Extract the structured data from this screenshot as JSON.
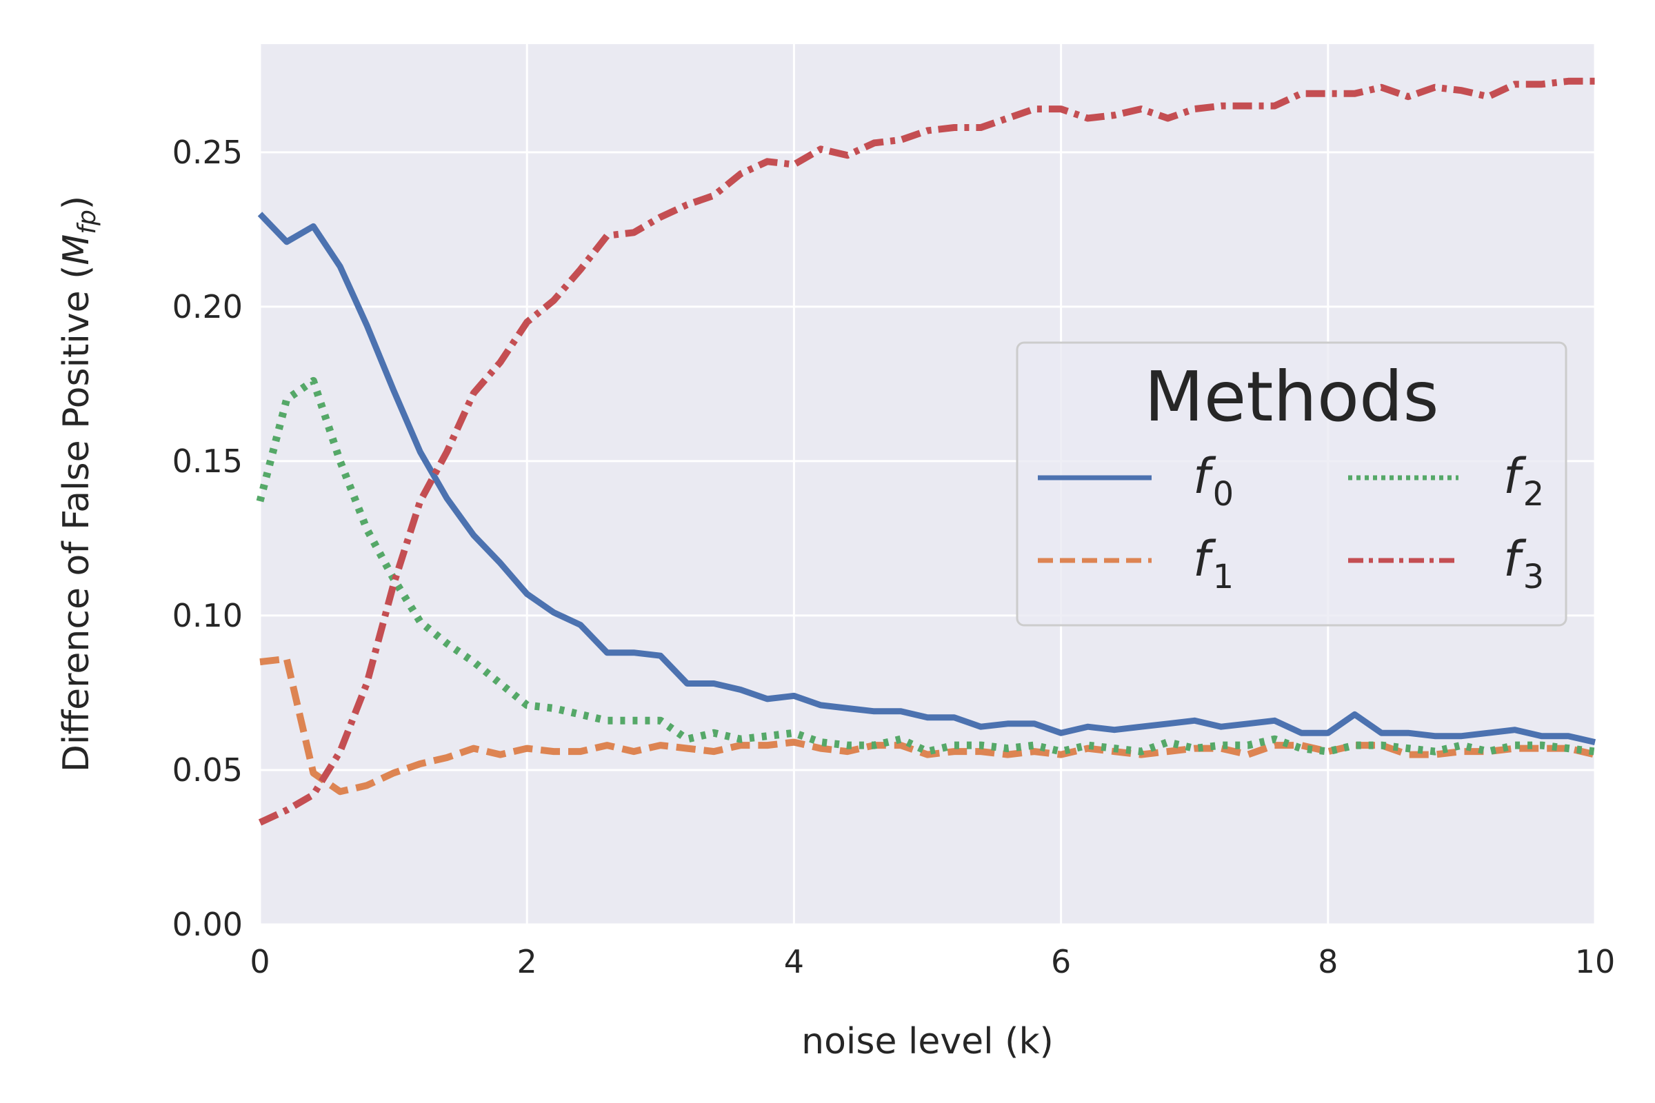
{
  "chart_data": {
    "type": "line",
    "title": "",
    "xlabel": "noise level (k)",
    "ylabel_text": "Difference of False Positive (",
    "ylabel_math": "M",
    "ylabel_sub": "fp",
    "ylabel_close": ")",
    "xlim": [
      0,
      10
    ],
    "ylim": [
      0,
      0.285
    ],
    "xticks": [
      0,
      2,
      4,
      6,
      8,
      10
    ],
    "xtick_labels": [
      "0",
      "2",
      "4",
      "6",
      "8",
      "10"
    ],
    "yticks": [
      0.0,
      0.05,
      0.1,
      0.15,
      0.2,
      0.25
    ],
    "ytick_labels": [
      "0.00",
      "0.05",
      "0.10",
      "0.15",
      "0.20",
      "0.25"
    ],
    "grid": true,
    "legend": {
      "title": "Methods",
      "placement": "center-right",
      "columns": 2
    },
    "x": [
      0,
      0.2,
      0.4,
      0.6,
      0.8,
      1.0,
      1.2,
      1.4,
      1.6,
      1.8,
      2.0,
      2.2,
      2.4,
      2.6,
      2.8,
      3.0,
      3.2,
      3.4,
      3.6,
      3.8,
      4.0,
      4.2,
      4.4,
      4.6,
      4.8,
      5.0,
      5.2,
      5.4,
      5.6,
      5.8,
      6.0,
      6.2,
      6.4,
      6.6,
      6.8,
      7.0,
      7.2,
      7.4,
      7.6,
      7.8,
      8.0,
      8.2,
      8.4,
      8.6,
      8.8,
      9.0,
      9.2,
      9.4,
      9.6,
      9.8,
      10.0
    ],
    "series": [
      {
        "name": "f",
        "sub": "0",
        "color": "#4c72b0",
        "style": "solid",
        "values": [
          0.23,
          0.221,
          0.226,
          0.213,
          0.194,
          0.173,
          0.153,
          0.138,
          0.126,
          0.117,
          0.107,
          0.101,
          0.097,
          0.088,
          0.088,
          0.087,
          0.078,
          0.078,
          0.076,
          0.073,
          0.074,
          0.071,
          0.07,
          0.069,
          0.069,
          0.067,
          0.067,
          0.064,
          0.065,
          0.065,
          0.062,
          0.064,
          0.063,
          0.064,
          0.065,
          0.066,
          0.064,
          0.065,
          0.066,
          0.062,
          0.062,
          0.068,
          0.062,
          0.062,
          0.061,
          0.061,
          0.062,
          0.063,
          0.061,
          0.061,
          0.059
        ]
      },
      {
        "name": "f",
        "sub": "1",
        "color": "#dd8452",
        "style": "dashed",
        "values": [
          0.085,
          0.086,
          0.049,
          0.043,
          0.045,
          0.049,
          0.052,
          0.054,
          0.057,
          0.055,
          0.057,
          0.056,
          0.056,
          0.058,
          0.056,
          0.058,
          0.057,
          0.056,
          0.058,
          0.058,
          0.059,
          0.057,
          0.056,
          0.058,
          0.058,
          0.055,
          0.056,
          0.056,
          0.055,
          0.056,
          0.055,
          0.057,
          0.056,
          0.055,
          0.056,
          0.057,
          0.057,
          0.055,
          0.058,
          0.058,
          0.056,
          0.058,
          0.058,
          0.055,
          0.055,
          0.056,
          0.056,
          0.057,
          0.057,
          0.057,
          0.055
        ]
      },
      {
        "name": "f",
        "sub": "2",
        "color": "#55a868",
        "style": "dotted",
        "values": [
          0.137,
          0.17,
          0.176,
          0.15,
          0.128,
          0.112,
          0.098,
          0.091,
          0.085,
          0.078,
          0.071,
          0.07,
          0.068,
          0.066,
          0.066,
          0.066,
          0.06,
          0.062,
          0.06,
          0.061,
          0.062,
          0.059,
          0.058,
          0.058,
          0.06,
          0.056,
          0.058,
          0.058,
          0.057,
          0.058,
          0.056,
          0.058,
          0.057,
          0.056,
          0.059,
          0.057,
          0.058,
          0.058,
          0.06,
          0.057,
          0.056,
          0.058,
          0.058,
          0.057,
          0.056,
          0.058,
          0.056,
          0.058,
          0.058,
          0.057,
          0.056
        ]
      },
      {
        "name": "f",
        "sub": "3",
        "color": "#c44e52",
        "style": "dashdot",
        "values": [
          0.033,
          0.037,
          0.042,
          0.056,
          0.078,
          0.11,
          0.137,
          0.153,
          0.172,
          0.182,
          0.195,
          0.202,
          0.212,
          0.223,
          0.224,
          0.229,
          0.233,
          0.236,
          0.243,
          0.247,
          0.246,
          0.251,
          0.249,
          0.253,
          0.254,
          0.257,
          0.258,
          0.258,
          0.261,
          0.264,
          0.264,
          0.261,
          0.262,
          0.264,
          0.261,
          0.264,
          0.265,
          0.265,
          0.265,
          0.269,
          0.269,
          0.269,
          0.271,
          0.268,
          0.271,
          0.27,
          0.268,
          0.272,
          0.272,
          0.273,
          0.273
        ]
      }
    ]
  }
}
